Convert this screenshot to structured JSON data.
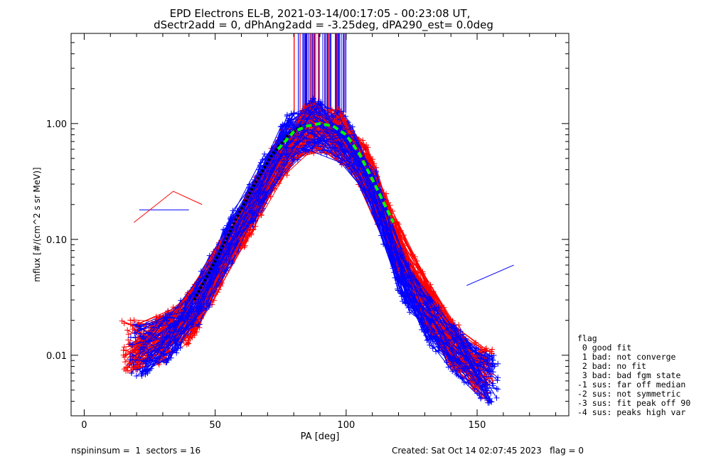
{
  "chart_data": {
    "type": "line",
    "title": "EPD Electrons EL-B, 2021-03-14/00:17:05 - 00:23:08 UT,",
    "subtitle": "dSectr2add = 0, dPhAng2add = -3.25deg, dPA290_est=   0.0deg",
    "xlabel": "PA [deg]",
    "ylabel": "mflux [#/(cm^2 s sr MeV)]",
    "xlim": [
      -5,
      185
    ],
    "ylim": [
      0.003,
      6.0
    ],
    "yscale": "log",
    "xticks": [
      "0",
      "50",
      "100",
      "150"
    ],
    "xtick_values": [
      0,
      50,
      100,
      150
    ],
    "yticks": [
      "0.01",
      "0.10",
      "1.00"
    ],
    "ytick_values": [
      0.01,
      0.1,
      1.0
    ],
    "series": [
      {
        "name": "spin profiles (red)",
        "color": "#ff0000",
        "x": [
          19,
          30,
          41,
          52,
          63,
          74,
          86,
          97,
          108,
          119,
          130,
          141,
          152
        ],
        "y": [
          0.012,
          0.014,
          0.022,
          0.06,
          0.17,
          0.5,
          0.95,
          0.8,
          0.4,
          0.09,
          0.03,
          0.012,
          0.007
        ]
      },
      {
        "name": "spin profiles (blue)",
        "color": "#0000ff",
        "x": [
          22,
          33,
          44,
          55,
          66,
          77,
          88,
          99,
          110,
          121,
          132,
          143,
          154
        ],
        "y": [
          0.011,
          0.015,
          0.03,
          0.09,
          0.25,
          0.7,
          1.0,
          0.75,
          0.3,
          0.05,
          0.02,
          0.01,
          0.006
        ]
      },
      {
        "name": "fit (green)",
        "color": "#00ff00",
        "x": [
          74,
          80,
          85,
          90,
          95,
          100,
          105,
          110,
          118
        ],
        "y": [
          0.6,
          0.85,
          0.95,
          1.0,
          0.95,
          0.8,
          0.55,
          0.33,
          0.14
        ]
      },
      {
        "name": "fit (black)",
        "color": "#000000",
        "x": [
          42,
          50,
          58,
          65,
          72,
          78,
          83
        ],
        "y": [
          0.03,
          0.065,
          0.15,
          0.3,
          0.55,
          0.8,
          0.95
        ]
      }
    ],
    "legend": {
      "title": "flag",
      "entries": [
        " 0 good fit",
        " 1 bad: not converge",
        " 2 bad: no fit",
        " 3 bad: bad fgm state",
        "-1 sus: far off median",
        "-2 sus: not symmetric",
        "-3 sus: fit peak off 90",
        "-4 sus: peaks high var"
      ],
      "placement": "right"
    }
  },
  "footer": {
    "left": "nspininsum =  1  sectors = 16",
    "right": "Created: Sat Oct 14 02:07:45 2023   flag = 0"
  },
  "colors": {
    "red": "#ff0000",
    "blue": "#0000ff",
    "green": "#00ff00",
    "black": "#000000"
  }
}
